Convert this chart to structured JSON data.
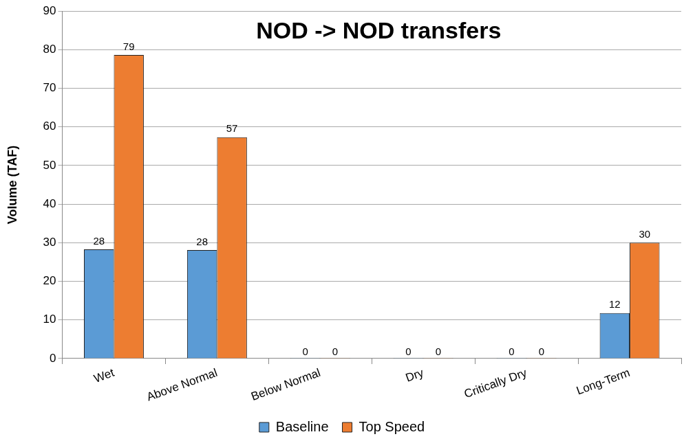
{
  "chart_data": {
    "type": "bar",
    "title": "NOD -> NOD transfers",
    "ylabel": "Volume (TAF)",
    "categories": [
      "Wet",
      "Above Normal",
      "Below Normal",
      "Dry",
      "Critically Dry",
      "Long-Term"
    ],
    "series": [
      {
        "name": "Baseline",
        "color": "#5b9bd5",
        "values": [
          28.3,
          28.1,
          0,
          0,
          0,
          11.8
        ],
        "value_labels": [
          "28",
          "28",
          "0",
          "0",
          "0",
          "12"
        ]
      },
      {
        "name": "Top Speed",
        "color": "#ed7d31",
        "values": [
          78.6,
          57.3,
          0,
          0,
          0,
          30
        ],
        "value_labels": [
          "79",
          "57",
          "0",
          "0",
          "0",
          "30"
        ]
      }
    ],
    "ylim": [
      0,
      90
    ],
    "yticks": [
      0,
      10,
      20,
      30,
      40,
      50,
      60,
      70,
      80,
      90
    ],
    "grid": "y",
    "legend": "bottom"
  }
}
